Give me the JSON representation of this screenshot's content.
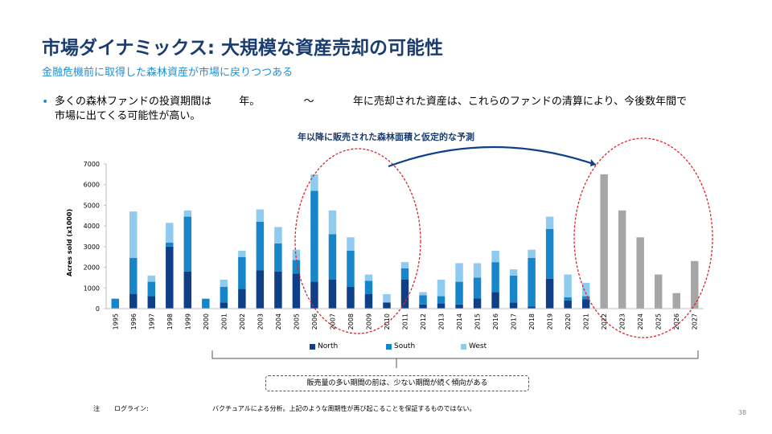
{
  "slide": {
    "title": "市場ダイナミックス: 大規模な資産売却の可能性",
    "subtitle": "金融危機前に取得した森林資産が市場に戻りつつある",
    "bullet": {
      "part1": "多くの森林ファンドの投資期間は",
      "part2": "年。",
      "part3": "～",
      "part4": "年に売却された資産は、これらのファンドの清算により、今後数年間で",
      "line2": "市場に出てくる可能性が高い。"
    },
    "annotation": "年以降に販売された森林面積と仮定的な予測",
    "callout": "販売量の多い期間の前は、少ない期間が続く傾向がある",
    "note_label": "注",
    "note_source": "ログライン:",
    "note_text": "バクチュアルによる分析。上記のような周期性が再び起こることを保証するものではない。",
    "page_number": "38"
  },
  "colors": {
    "north": "#0f3f86",
    "south": "#1785c9",
    "west": "#8fcbee",
    "forecast": "#a6a6a6",
    "highlight": "#d9262c",
    "arrow": "#0f3f86"
  },
  "chart_data": {
    "type": "bar",
    "stacked": true,
    "ylabel": "Acres sold (x1000)",
    "ylim": [
      0,
      7000
    ],
    "yticks": [
      0,
      1000,
      2000,
      3000,
      4000,
      5000,
      6000,
      7000
    ],
    "grid": false,
    "legend_position": "bottom",
    "categories": [
      "1995",
      "1996",
      "1997",
      "1998",
      "1999",
      "2000",
      "2001",
      "2002",
      "2003",
      "2004",
      "2005",
      "2006",
      "2007",
      "2008",
      "2009",
      "2010",
      "2011",
      "2012",
      "2013",
      "2014",
      "2015",
      "2016",
      "2017",
      "2018",
      "2019",
      "2020",
      "2021",
      "2022",
      "2023",
      "2024",
      "2025",
      "2026",
      "2027"
    ],
    "series": [
      {
        "name": "North",
        "values": [
          0,
          700,
          600,
          3000,
          1800,
          0,
          300,
          950,
          1850,
          1800,
          1700,
          1300,
          1400,
          1050,
          700,
          300,
          1400,
          200,
          250,
          200,
          500,
          800,
          300,
          100,
          1450,
          400,
          450,
          0,
          0,
          0,
          0,
          0,
          0
        ]
      },
      {
        "name": "South",
        "values": [
          480,
          1750,
          700,
          200,
          2650,
          480,
          750,
          1550,
          2350,
          1350,
          650,
          4400,
          2200,
          1750,
          650,
          0,
          550,
          450,
          350,
          1100,
          1000,
          1450,
          1300,
          2350,
          2400,
          150,
          150,
          0,
          0,
          0,
          0,
          0,
          0
        ]
      },
      {
        "name": "West",
        "values": [
          0,
          2250,
          300,
          950,
          300,
          0,
          350,
          300,
          600,
          800,
          500,
          800,
          1150,
          650,
          300,
          400,
          300,
          150,
          800,
          900,
          700,
          550,
          300,
          400,
          600,
          1100,
          650,
          0,
          0,
          0,
          0,
          0,
          0
        ]
      },
      {
        "name": "",
        "values": [
          0,
          0,
          0,
          0,
          0,
          0,
          0,
          0,
          0,
          0,
          0,
          0,
          0,
          0,
          0,
          0,
          0,
          0,
          0,
          0,
          0,
          0,
          0,
          0,
          0,
          0,
          0,
          6500,
          4750,
          3450,
          1650,
          750,
          2300
        ]
      }
    ]
  }
}
